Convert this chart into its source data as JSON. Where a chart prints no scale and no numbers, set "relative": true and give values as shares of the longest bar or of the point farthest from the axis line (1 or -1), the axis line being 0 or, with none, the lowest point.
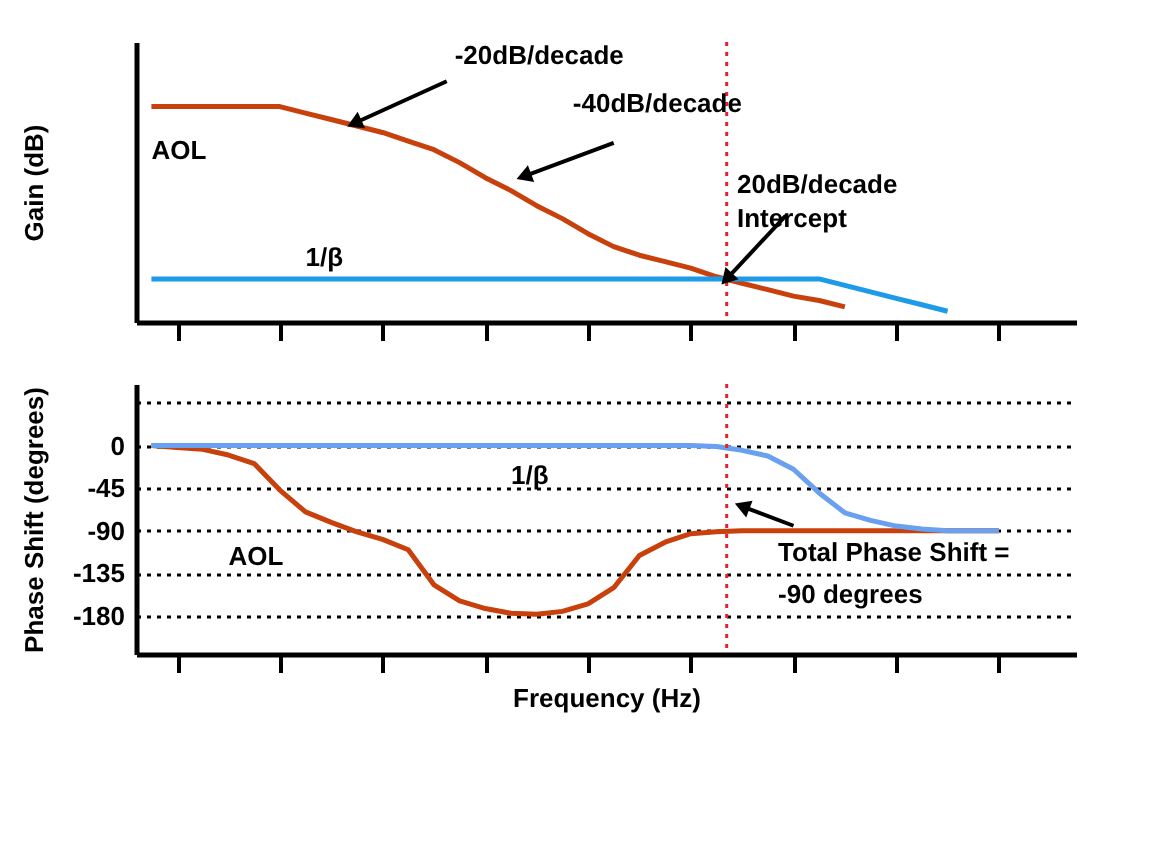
{
  "chart_data": [
    {
      "type": "line",
      "relative": true,
      "ylabel": "Gain (dB)",
      "tick_labels": false,
      "categories": [
        null,
        null,
        null,
        null,
        null,
        null,
        null,
        null,
        null,
        null,
        null,
        null,
        null,
        null,
        null,
        null,
        null,
        null,
        null,
        null,
        null,
        null,
        null,
        null,
        null,
        null,
        null,
        null,
        null,
        null,
        null,
        null,
        null,
        null,
        null,
        null
      ],
      "series": [
        {
          "name": "AOL",
          "color": "#c8400c",
          "values": [
            1,
            1,
            1,
            1,
            1,
            1,
            0.97,
            0.94,
            0.91,
            0.88,
            0.84,
            0.8,
            0.74,
            0.67,
            0.61,
            0.54,
            0.48,
            0.41,
            0.35,
            0.31,
            0.28,
            0.25,
            0.21,
            0.18,
            0.15,
            0.12,
            0.1,
            0.07,
            null,
            null,
            null,
            null,
            null,
            null,
            null,
            null
          ]
        },
        {
          "name": "1/β",
          "color": "#1e9be8",
          "values": [
            0.2,
            0.2,
            0.2,
            0.2,
            0.2,
            0.2,
            0.2,
            0.2,
            0.2,
            0.2,
            0.2,
            0.2,
            0.2,
            0.2,
            0.2,
            0.2,
            0.2,
            0.2,
            0.2,
            0.2,
            0.2,
            0.2,
            0.2,
            0.2,
            0.2,
            0.2,
            0.2,
            0.17,
            0.14,
            0.11,
            0.08,
            0.05,
            null,
            null,
            null,
            null
          ]
        }
      ],
      "annotations": [
        "-20dB/decade",
        "-40dB/decade",
        "20dB/decade\nIntercept"
      ]
    },
    {
      "type": "line",
      "ylabel": "Phase Shift (degrees)",
      "xlabel": "Frequency (Hz)",
      "tick_labels": "y",
      "grid": "y",
      "categories": [
        null,
        null,
        null,
        null,
        null,
        null,
        null,
        null,
        null,
        null,
        null,
        null,
        null,
        null,
        null,
        null,
        null,
        null,
        null,
        null,
        null,
        null,
        null,
        null,
        null,
        null,
        null,
        null,
        null,
        null,
        null,
        null,
        null,
        null,
        null,
        null
      ],
      "ylim": [
        -220,
        65
      ],
      "yticks": [
        {
          "value": 45,
          "label": null
        },
        0,
        -45,
        -90,
        -135,
        -180
      ],
      "series": [
        {
          "name": "AOL",
          "color": "#c8400c",
          "values": [
            0,
            -2,
            -4,
            -10,
            -19,
            -47,
            -70,
            -81,
            -91,
            -99,
            -110,
            -147,
            -164,
            -172,
            -177,
            -178,
            -175,
            -167,
            -150,
            -116,
            -102,
            -93,
            -91,
            -90,
            -90,
            -90,
            -90,
            -90,
            -90,
            -90,
            -90,
            -90,
            -90,
            -90,
            null,
            null
          ]
        },
        {
          "name": "1/β",
          "color": "#6aa0f0",
          "values": [
            0,
            0,
            0,
            0,
            0,
            0,
            0,
            0,
            0,
            0,
            0,
            0,
            0,
            0,
            0,
            0,
            0,
            0,
            0,
            0,
            0,
            0,
            -1,
            -5,
            -11,
            -25,
            -50,
            -71,
            -79,
            -85,
            -88,
            -90,
            -90,
            -90,
            null,
            null
          ]
        }
      ],
      "annotations": [
        "Total Phase Shift =\n-90 degrees"
      ]
    }
  ]
}
